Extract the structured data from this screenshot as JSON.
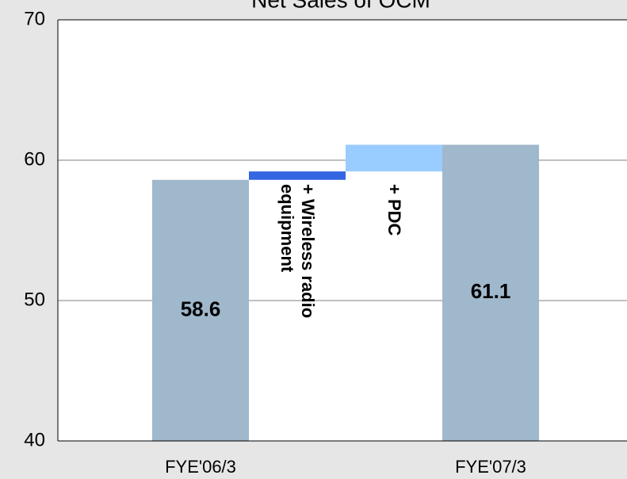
{
  "chart_data": {
    "type": "waterfall",
    "title": "Net Sales of OCM",
    "categories": [
      "FYE'06/3",
      "+ Wireless radio equipment",
      "+ PDC",
      "FYE'07/3"
    ],
    "values": [
      58.6,
      0.6,
      1.9,
      61.1
    ],
    "is_total": [
      true,
      false,
      false,
      true
    ],
    "colors": [
      "#a0b8cc",
      "#3366e0",
      "#99ccff",
      "#a0b8cc"
    ],
    "ylim": [
      40,
      70
    ],
    "yticks": [
      40,
      50,
      60,
      70
    ],
    "grid": true
  }
}
